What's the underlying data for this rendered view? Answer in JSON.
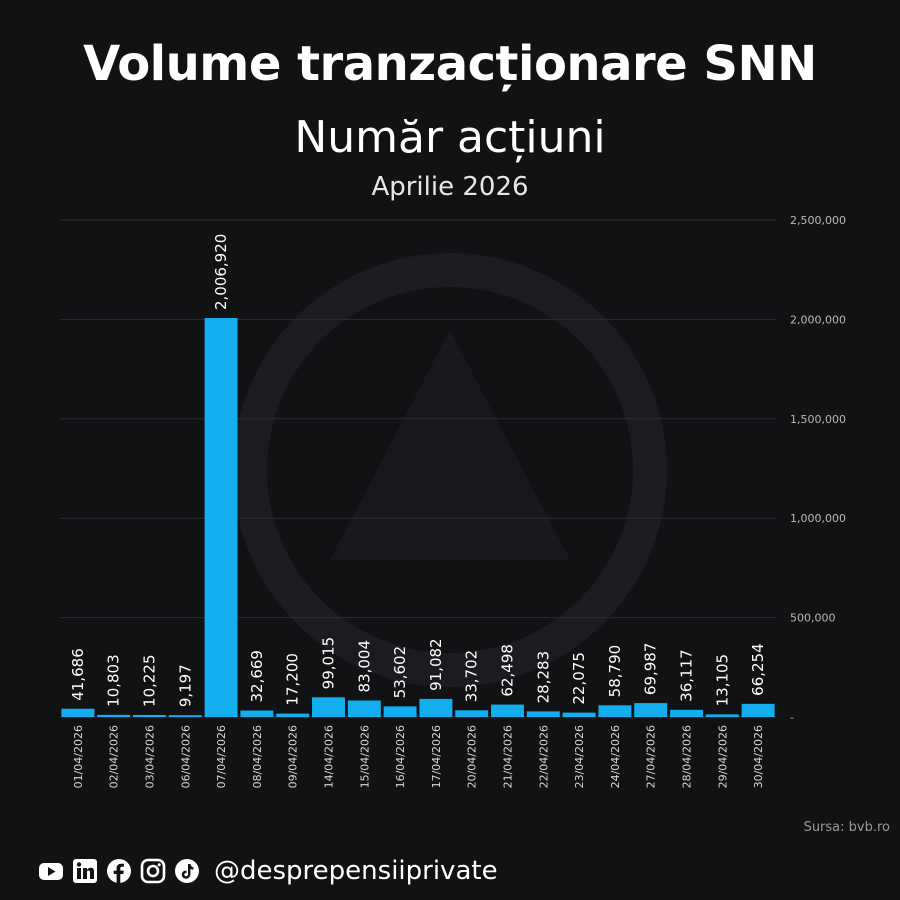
{
  "header": {
    "title": "Volume tranzacționare SNN",
    "subtitle": "Număr acțiuni",
    "period": "Aprilie 2026"
  },
  "chart_data": {
    "type": "bar",
    "categories": [
      "01/04/2026",
      "02/04/2026",
      "03/04/2026",
      "06/04/2026",
      "07/04/2026",
      "08/04/2026",
      "09/04/2026",
      "14/04/2026",
      "15/04/2026",
      "16/04/2026",
      "17/04/2026",
      "20/04/2026",
      "21/04/2026",
      "22/04/2026",
      "23/04/2026",
      "24/04/2026",
      "27/04/2026",
      "28/04/2026",
      "29/04/2026",
      "30/04/2026"
    ],
    "values": [
      41686,
      10803,
      10225,
      9197,
      2006920,
      32669,
      17200,
      99015,
      83004,
      53602,
      91082,
      33702,
      62498,
      28283,
      22075,
      58790,
      69987,
      36117,
      13105,
      66254
    ],
    "value_labels": [
      "41,686",
      "10,803",
      "10,225",
      "9,197",
      "2,006,920",
      "32,669",
      "17,200",
      "99,015",
      "83,004",
      "53,602",
      "91,082",
      "33,702",
      "62,498",
      "28,283",
      "22,075",
      "58,790",
      "69,987",
      "36,117",
      "13,105",
      "66,254"
    ],
    "ylim": [
      0,
      2500000
    ],
    "yticks": [
      0,
      500000,
      1000000,
      1500000,
      2000000,
      2500000
    ],
    "ytick_labels": [
      "-",
      "500,000",
      "1,000,000",
      "1,500,000",
      "2,000,000",
      "2,500,000"
    ],
    "y_axis_side": "right",
    "grid": true,
    "bar_color": "#12AEEF"
  },
  "source": "Sursa: bvb.ro",
  "footer": {
    "icons": [
      "youtube-icon",
      "linkedin-icon",
      "facebook-icon",
      "instagram-icon",
      "tiktok-icon"
    ],
    "handle": "@desprepensiiprivate"
  }
}
